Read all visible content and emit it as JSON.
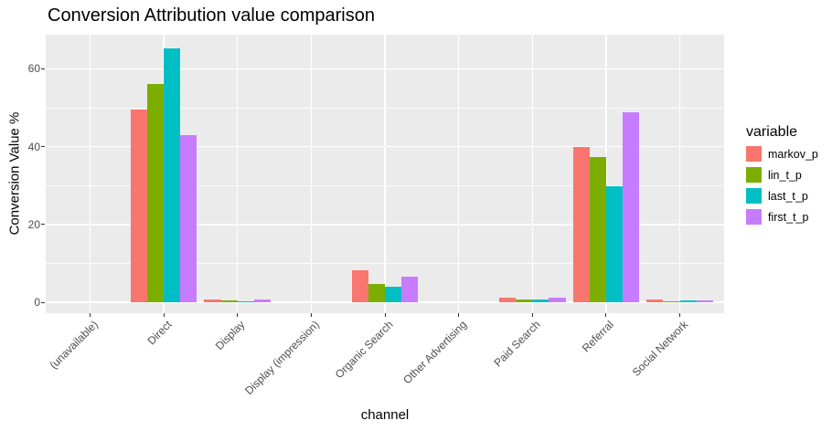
{
  "title": "Conversion Attribution value comparison",
  "chart_data": {
    "type": "bar",
    "title": "Conversion Attribution value comparison",
    "xlabel": "channel",
    "ylabel": "Conversion Value %",
    "legend_title": "variable",
    "legend_position": "right",
    "grid": true,
    "panel_background": "#EBEBEB",
    "gridline_color": "#FFFFFF",
    "axis_text_color": "#4D4D4D",
    "categories": [
      "(unavailable)",
      "Direct",
      "Display",
      "Display (impression)",
      "Organic Search",
      "Other Advertising",
      "Paid Search",
      "Referral",
      "Social Network"
    ],
    "y_ticks": [
      0,
      20,
      40,
      60
    ],
    "y_minor_ticks": [
      10,
      30,
      50
    ],
    "ylim": [
      0,
      68.5
    ],
    "series": [
      {
        "name": "markov_p",
        "color": "#F8766D",
        "values": [
          0,
          49.5,
          0.8,
          0,
          8.1,
          0,
          1.1,
          40.0,
          0.8
        ]
      },
      {
        "name": "lin_t_p",
        "color": "#7CAE00",
        "values": [
          0,
          56.1,
          0.5,
          0,
          4.8,
          0,
          0.8,
          37.4,
          0.3
        ]
      },
      {
        "name": "last_t_p",
        "color": "#00BFC4",
        "values": [
          0,
          65.3,
          0.2,
          0,
          3.9,
          0,
          0.6,
          29.8,
          0.4
        ]
      },
      {
        "name": "first_t_p",
        "color": "#C77CFF",
        "values": [
          0,
          42.9,
          0.6,
          0,
          6.5,
          0,
          1.1,
          48.9,
          0.4
        ]
      }
    ]
  }
}
